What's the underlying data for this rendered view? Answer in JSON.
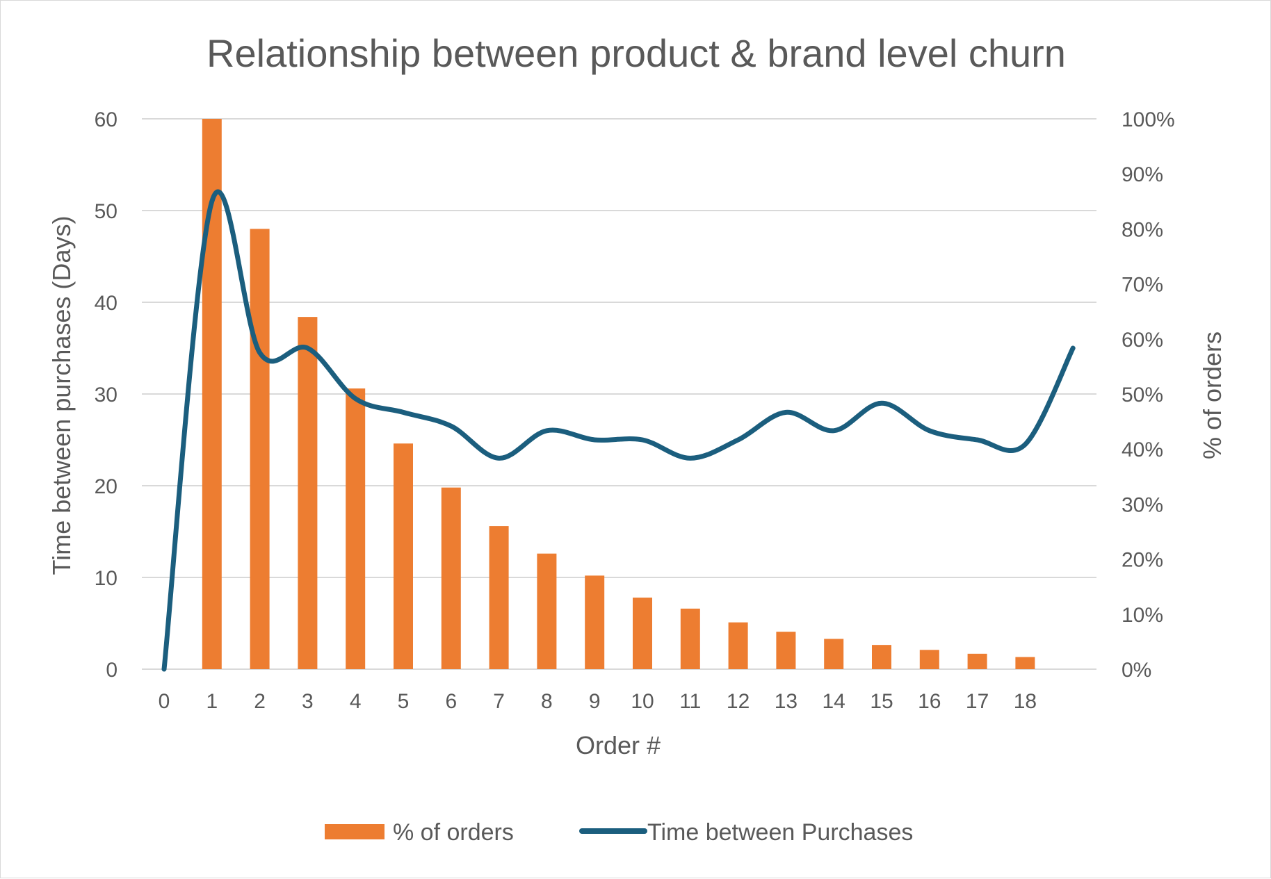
{
  "chart_data": {
    "type": "bar+line",
    "title": "Relationship between product & brand level churn",
    "xlabel": "Order #",
    "ylabel_left": "Time between purchases (Days)",
    "ylabel_right": "% of orders",
    "categories": [
      "0",
      "1",
      "2",
      "3",
      "4",
      "5",
      "6",
      "7",
      "8",
      "9",
      "10",
      "11",
      "12",
      "13",
      "14",
      "15",
      "16",
      "17",
      "18"
    ],
    "y_left": {
      "min": 0,
      "max": 60,
      "ticks": [
        "0",
        "10",
        "20",
        "30",
        "40",
        "50",
        "60"
      ]
    },
    "y_right": {
      "min": 0,
      "max": 1,
      "ticks": [
        "0%",
        "10%",
        "20%",
        "30%",
        "40%",
        "50%",
        "60%",
        "70%",
        "80%",
        "90%",
        "100%"
      ]
    },
    "grid": true,
    "legend_position": "bottom",
    "series": [
      {
        "name": "% of orders",
        "type": "bar",
        "axis": "right",
        "color": "#ED7D31",
        "x": [
          1,
          2,
          3,
          4,
          5,
          6,
          7,
          8,
          9,
          10,
          11,
          12,
          13,
          14,
          15,
          16,
          17,
          18
        ],
        "values": [
          1.0,
          0.8,
          0.64,
          0.51,
          0.41,
          0.33,
          0.26,
          0.21,
          0.17,
          0.13,
          0.11,
          0.085,
          0.068,
          0.055,
          0.044,
          0.035,
          0.028,
          0.022
        ]
      },
      {
        "name": "Time between Purchases",
        "type": "line",
        "axis": "left",
        "color": "#1B5E7E",
        "smooth": true,
        "x": [
          0,
          1,
          2,
          3,
          4,
          5,
          6,
          7,
          8,
          9,
          10,
          11,
          12,
          13,
          14,
          15,
          16,
          17,
          18,
          19
        ],
        "values": [
          0,
          51,
          34.5,
          35,
          29.5,
          28,
          26.5,
          23,
          26,
          25,
          25,
          23,
          25,
          28,
          26,
          29,
          26,
          25,
          24.5,
          35
        ]
      }
    ]
  }
}
